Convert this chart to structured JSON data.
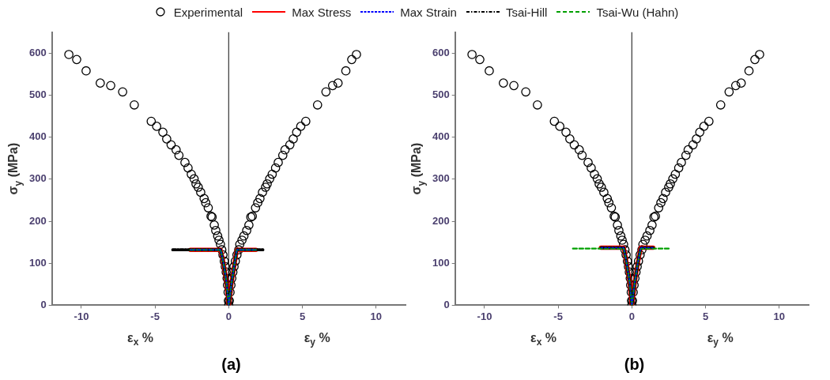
{
  "chart_data": [
    {
      "type": "scatter",
      "title": "(a)",
      "ylabel": "σ$_{y}$ (MPa)",
      "annotations": [
        "ε$_{x}$ %",
        "ε$_{y}$ %"
      ],
      "xlim": [
        -12,
        12
      ],
      "xticks": [
        -10,
        -5,
        0,
        5,
        10
      ],
      "ylim": [
        0,
        650
      ],
      "yticks": [
        0,
        100,
        200,
        300,
        400,
        500,
        600
      ],
      "grid": false,
      "legend": "top",
      "ref_lines": [
        {
          "axis": "x",
          "value": 0,
          "color": "#444444"
        }
      ],
      "series": [
        {
          "name": "Experimental",
          "marker": "circle",
          "color": "#000000",
          "x": [
            -10.85,
            -10.32,
            -9.68,
            -8.72,
            -8.01,
            -7.2,
            -6.41,
            -5.26,
            -4.89,
            -4.47,
            -4.21,
            -3.91,
            -3.57,
            -3.38,
            -2.97,
            -2.76,
            -2.54,
            -2.35,
            -2.22,
            -2.07,
            -1.9,
            -1.67,
            -1.56,
            -1.39,
            -1.2,
            -1.13,
            -0.98,
            -0.88,
            -0.75,
            -0.66,
            -0.56,
            -0.47,
            -0.39,
            -0.3,
            -0.23,
            -0.17,
            -0.11,
            -0.08,
            -0.04,
            -0.02,
            0,
            8.67,
            8.35,
            7.95,
            7.42,
            7.05,
            6.6,
            6.03,
            5.23,
            4.89,
            4.61,
            4.38,
            4.15,
            3.82,
            3.67,
            3.36,
            3.18,
            2.95,
            2.78,
            2.61,
            2.5,
            2.29,
            2.12,
            1.97,
            1.82,
            1.6,
            1.5,
            1.37,
            1.22,
            1.03,
            0.9,
            0.75,
            0.68,
            0.56,
            0.45,
            0.36,
            0.28,
            0.21,
            0.15,
            0.09,
            0.04
          ],
          "values": [
            597,
            585,
            558,
            529,
            523,
            508,
            477,
            438,
            426,
            412,
            396,
            382,
            370,
            357,
            340,
            327,
            312,
            301,
            289,
            281,
            269,
            254,
            244,
            232,
            212,
            210,
            191,
            178,
            165,
            155,
            145,
            132,
            120,
            105,
            92,
            79,
            64,
            48,
            31,
            11,
            0,
            597,
            585,
            558,
            529,
            523,
            508,
            477,
            438,
            426,
            412,
            396,
            382,
            370,
            357,
            340,
            327,
            312,
            301,
            289,
            281,
            269,
            254,
            244,
            232,
            212,
            210,
            191,
            178,
            165,
            155,
            145,
            132,
            120,
            105,
            92,
            79,
            64,
            48,
            31,
            11
          ]
        },
        {
          "name": "Max Stress",
          "type": "line",
          "line_style": "solid",
          "color": "#ff0000",
          "x": [
            -2.6,
            -0.55,
            -0.35,
            -0.15,
            0,
            0.2,
            0.4,
            0.55,
            1.85
          ],
          "values": [
            132,
            132,
            100,
            55,
            0,
            55,
            100,
            132,
            132
          ]
        },
        {
          "name": "Max Strain",
          "type": "line",
          "line_style": "dotted",
          "color": "#0000ff",
          "x": [
            -2.6,
            -0.55,
            -0.35,
            -0.15,
            0,
            0.2,
            0.4,
            0.55,
            1.85
          ],
          "values": [
            132,
            132,
            100,
            55,
            0,
            55,
            100,
            132,
            132
          ]
        },
        {
          "name": "Tsai-Hill",
          "type": "line",
          "line_style": "dashdot",
          "color": "#000000",
          "x": [
            -3.8,
            -0.55,
            -0.35,
            -0.15,
            0,
            0.2,
            0.4,
            0.55,
            2.4
          ],
          "values": [
            132,
            132,
            100,
            55,
            0,
            55,
            100,
            132,
            132
          ]
        },
        {
          "name": "Tsai-Wu (Hahn)",
          "type": "line",
          "line_style": "dashed",
          "color": "#00a000",
          "x": [
            -2.6,
            -0.55,
            -0.35,
            -0.15,
            0,
            0.2,
            0.4,
            0.55,
            1.85
          ],
          "values": [
            132,
            132,
            100,
            55,
            0,
            55,
            100,
            132,
            132
          ]
        }
      ]
    },
    {
      "type": "scatter",
      "title": "(b)",
      "ylabel": "σ$_{y}$ (MPa)",
      "annotations": [
        "ε$_{x}$ %",
        "ε$_{y}$ %"
      ],
      "xlim": [
        -12,
        12
      ],
      "xticks": [
        -10,
        -5,
        0,
        5,
        10
      ],
      "ylim": [
        0,
        650
      ],
      "yticks": [
        0,
        100,
        200,
        300,
        400,
        500,
        600
      ],
      "grid": false,
      "ref_lines": [
        {
          "axis": "x",
          "value": 0,
          "color": "#444444"
        }
      ],
      "series": [
        {
          "marker": "circle",
          "color": "#000000",
          "x": [
            -10.85,
            -10.32,
            -9.68,
            -8.72,
            -8.01,
            -7.2,
            -6.41,
            -5.26,
            -4.89,
            -4.47,
            -4.21,
            -3.91,
            -3.57,
            -3.38,
            -2.97,
            -2.76,
            -2.54,
            -2.35,
            -2.22,
            -2.07,
            -1.9,
            -1.67,
            -1.56,
            -1.39,
            -1.2,
            -1.13,
            -0.98,
            -0.88,
            -0.75,
            -0.66,
            -0.56,
            -0.47,
            -0.39,
            -0.3,
            -0.23,
            -0.17,
            -0.11,
            -0.08,
            -0.04,
            -0.02,
            0,
            8.67,
            8.35,
            7.95,
            7.42,
            7.05,
            6.6,
            6.03,
            5.23,
            4.89,
            4.61,
            4.38,
            4.15,
            3.82,
            3.67,
            3.36,
            3.18,
            2.95,
            2.78,
            2.61,
            2.5,
            2.29,
            2.12,
            1.97,
            1.82,
            1.6,
            1.5,
            1.37,
            1.22,
            1.03,
            0.9,
            0.75,
            0.68,
            0.56,
            0.45,
            0.36,
            0.28,
            0.21,
            0.15,
            0.09,
            0.04
          ],
          "values": [
            597,
            585,
            558,
            529,
            523,
            508,
            477,
            438,
            426,
            412,
            396,
            382,
            370,
            357,
            340,
            327,
            312,
            301,
            289,
            281,
            269,
            254,
            244,
            232,
            212,
            210,
            191,
            178,
            165,
            155,
            145,
            132,
            120,
            105,
            92,
            79,
            64,
            48,
            31,
            11,
            0,
            597,
            585,
            558,
            529,
            523,
            508,
            477,
            438,
            426,
            412,
            396,
            382,
            370,
            357,
            340,
            327,
            312,
            301,
            289,
            281,
            269,
            254,
            244,
            232,
            212,
            210,
            191,
            178,
            165,
            155,
            145,
            132,
            120,
            105,
            92,
            79,
            64,
            48,
            31,
            11
          ]
        },
        {
          "type": "line",
          "line_style": "solid",
          "color": "#ff0000",
          "x": [
            -2.1,
            -0.55,
            -0.35,
            -0.15,
            0,
            0.2,
            0.4,
            0.6,
            1.45
          ],
          "values": [
            137,
            137,
            100,
            55,
            0,
            55,
            100,
            137,
            137
          ]
        },
        {
          "type": "line",
          "line_style": "dotted",
          "color": "#0000ff",
          "x": [
            -2.1,
            -0.55,
            -0.35,
            -0.15,
            0,
            0.2,
            0.4,
            0.6,
            1.45
          ],
          "values": [
            137,
            137,
            100,
            55,
            0,
            55,
            100,
            137,
            137
          ]
        },
        {
          "type": "line",
          "line_style": "dashdot",
          "color": "#000000",
          "x": [
            -2.1,
            -0.55,
            -0.35,
            -0.15,
            0,
            0.2,
            0.4,
            0.6,
            1.45
          ],
          "values": [
            137,
            137,
            100,
            55,
            0,
            55,
            100,
            137,
            137
          ]
        },
        {
          "type": "line",
          "line_style": "dashed",
          "color": "#00a000",
          "x": [
            -4.0,
            -0.55,
            -0.35,
            -0.15,
            0,
            0.2,
            0.4,
            0.6,
            2.5
          ],
          "values": [
            135,
            135,
            100,
            55,
            0,
            55,
            100,
            135,
            135
          ]
        }
      ]
    }
  ]
}
